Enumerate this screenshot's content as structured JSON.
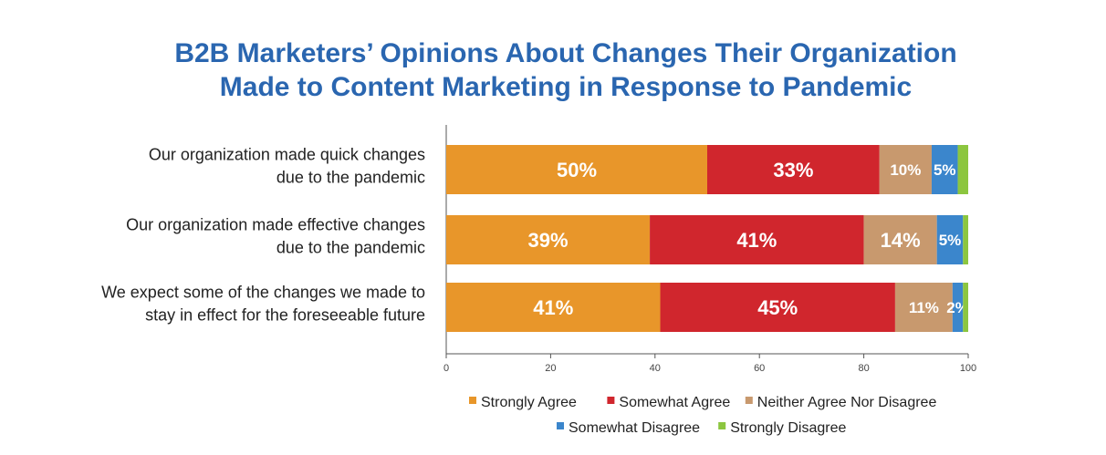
{
  "chart_data": {
    "type": "bar",
    "orientation": "horizontal",
    "stacked": true,
    "title_lines": [
      "B2B Marketers’ Opinions About Changes Their Organization",
      "Made to Content Marketing in Response to Pandemic"
    ],
    "categories": [
      [
        "Our organization made quick changes",
        "due to the pandemic"
      ],
      [
        "Our organization made effective changes",
        "due to the pandemic"
      ],
      [
        "We expect some of the changes we made to",
        "stay in effect for the foreseeable future"
      ]
    ],
    "series": [
      {
        "name": "Strongly Agree",
        "color": "#e8962a",
        "values": [
          50,
          39,
          41
        ]
      },
      {
        "name": "Somewhat Agree",
        "color": "#d0262d",
        "values": [
          33,
          41,
          45
        ]
      },
      {
        "name": "Neither Agree Nor Disagree",
        "color": "#c8996e",
        "values": [
          10,
          14,
          11
        ]
      },
      {
        "name": "Somewhat Disagree",
        "color": "#3b86cc",
        "values": [
          5,
          5,
          2
        ]
      },
      {
        "name": "Strongly Disagree",
        "color": "#8cc63f",
        "values": [
          2,
          1,
          1
        ]
      }
    ],
    "xlim": [
      0,
      100
    ],
    "xticks": [
      0,
      20,
      40,
      60,
      80,
      100
    ],
    "value_suffix": "%",
    "legend_position": "bottom",
    "grid": false
  }
}
